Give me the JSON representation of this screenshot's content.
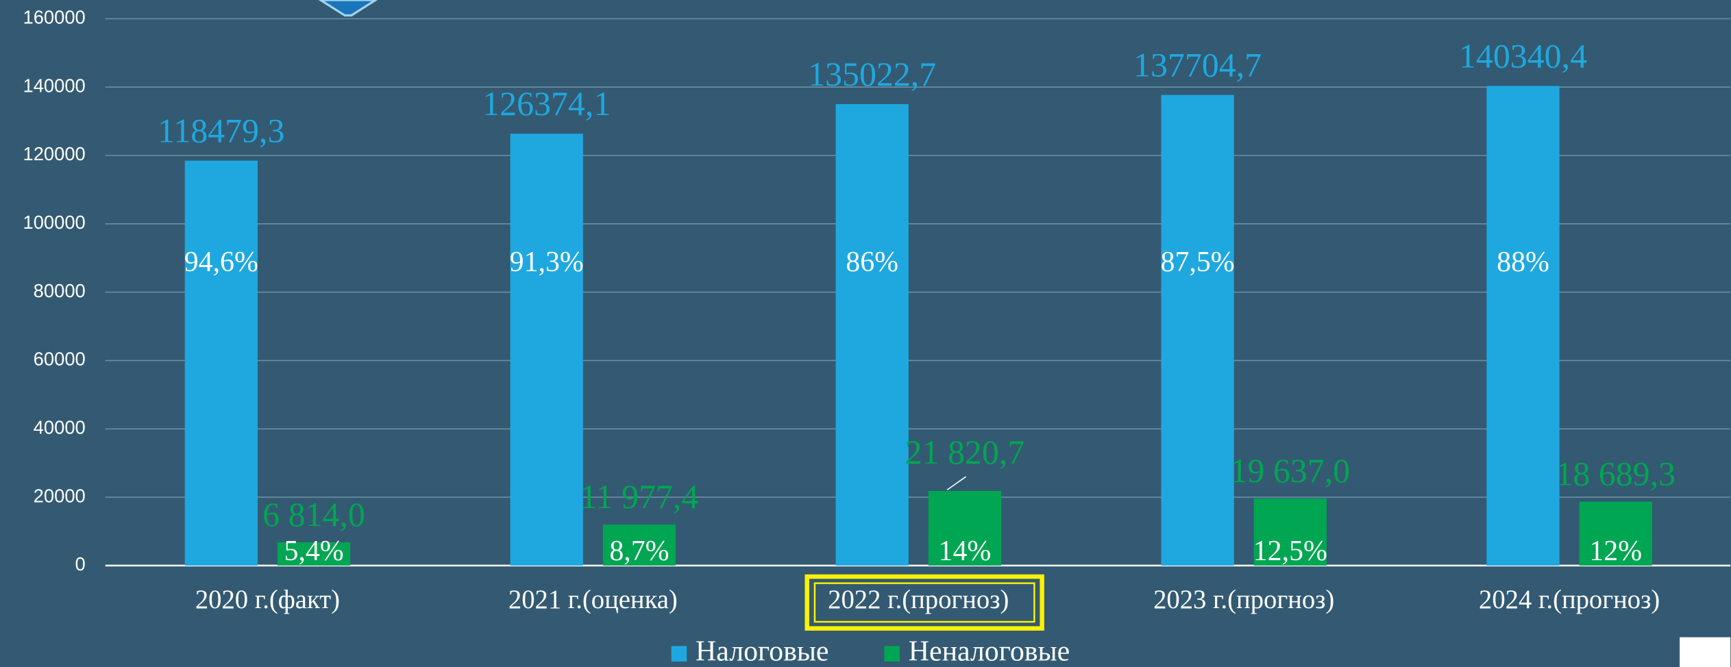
{
  "chart_data": {
    "type": "bar",
    "categories": [
      "2020 г.(факт)",
      "2021 г.(оценка)",
      "2022 г.(прогноз)",
      "2023 г.(прогноз)",
      "2024 г.(прогноз)"
    ],
    "series": [
      {
        "name": "Налоговые",
        "color": "#1fa8e0",
        "values": [
          118479.3,
          126374.1,
          135022.7,
          137704.7,
          140340.4
        ],
        "value_labels": [
          "118479,3",
          "126374,1",
          "135022,7",
          "137704,7",
          "140340,4"
        ],
        "share_labels": [
          "94,6%",
          "91,3%",
          "86%",
          "87,5%",
          "88%"
        ]
      },
      {
        "name": "Неналоговые",
        "color": "#00a651",
        "values": [
          6814.0,
          11977.4,
          21820.7,
          19637.0,
          18689.3
        ],
        "value_labels": [
          "6 814,0",
          "11 977,4",
          "21 820,7",
          "19 637,0",
          "18 689,3"
        ],
        "share_labels": [
          "5,4%",
          "8,7%",
          "14%",
          "12,5%",
          "12%"
        ]
      }
    ],
    "ylim": [
      0,
      160000
    ],
    "yticks": [
      0,
      20000,
      40000,
      60000,
      80000,
      100000,
      120000,
      140000,
      160000
    ],
    "grid": true,
    "legend": "bottom"
  }
}
